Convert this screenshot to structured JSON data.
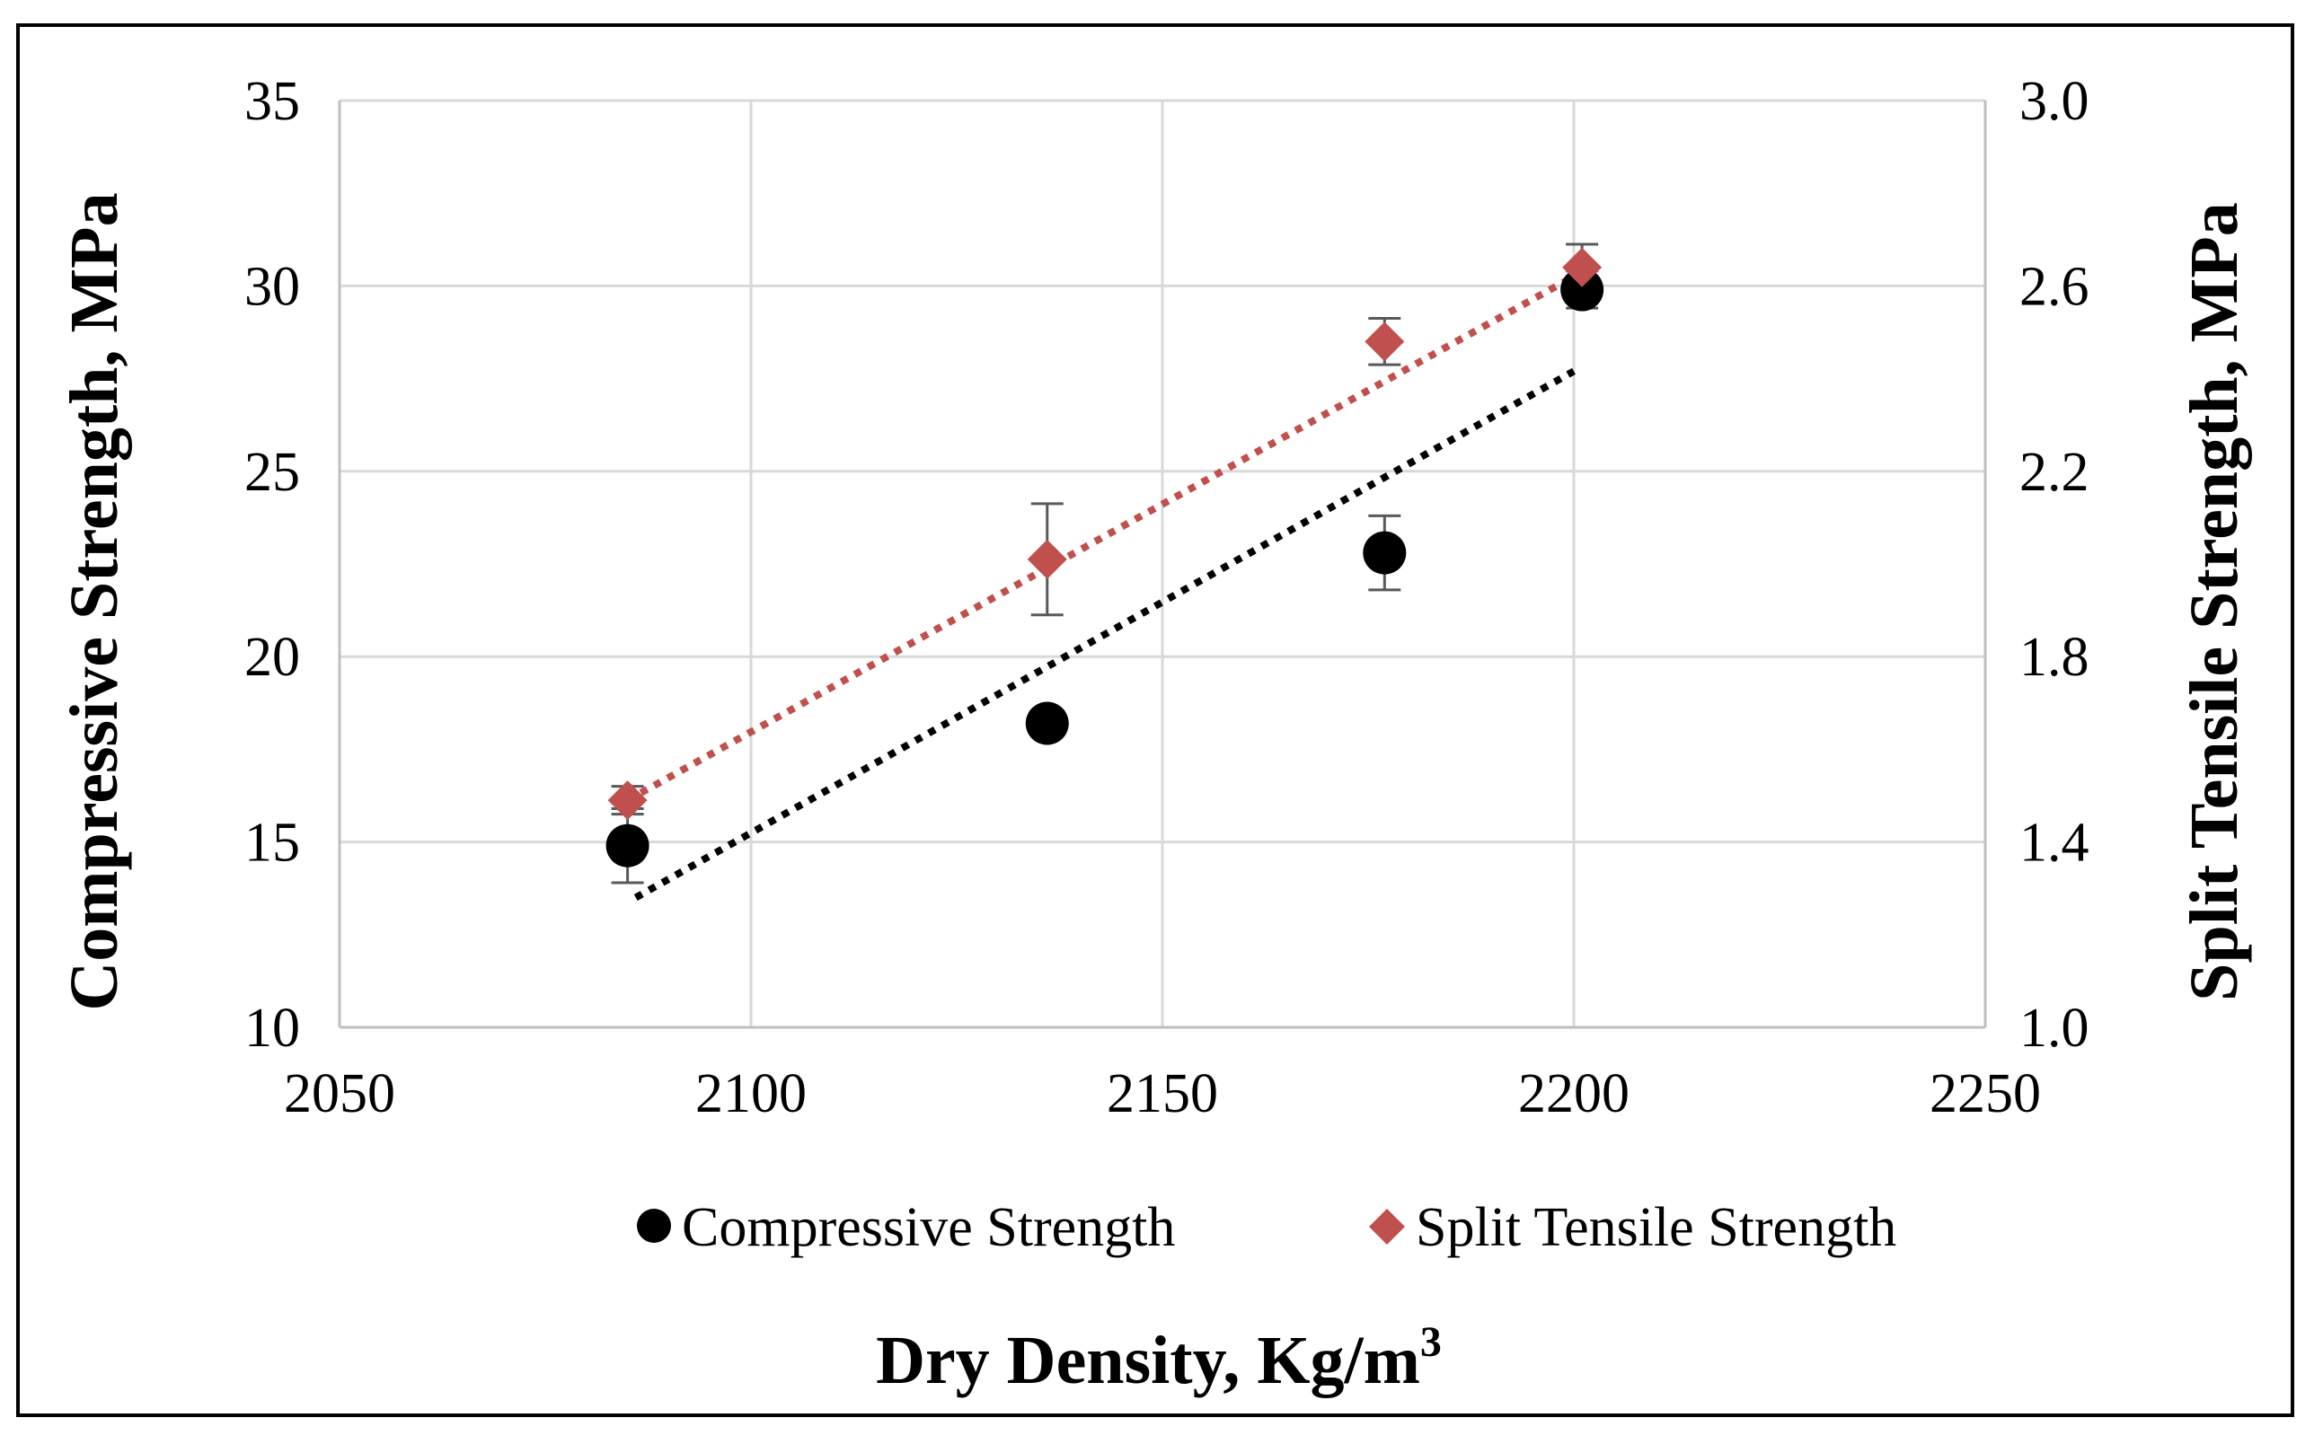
{
  "chart_data": {
    "type": "scatter",
    "title": "",
    "xlabel": "Dry Density, Kg/m",
    "xlabel_superscript": "3",
    "ylabel_left": "Compressive Strength, MPa",
    "ylabel_right": "Split Tensile Strength, MPa",
    "xlim": [
      2050,
      2250
    ],
    "ylim_left": [
      10,
      35
    ],
    "ylim_right": [
      1.0,
      3.0
    ],
    "x_ticks": [
      "2050",
      "2100",
      "2150",
      "2200",
      "2250"
    ],
    "y_left_ticks": [
      "10",
      "15",
      "20",
      "25",
      "30",
      "35"
    ],
    "y_right_ticks": [
      "1.0",
      "1.4",
      "1.8",
      "2.2",
      "2.6",
      "3.0"
    ],
    "grid": true,
    "legend_position": "bottom",
    "series": [
      {
        "name": "Compressive Strength",
        "axis": "left",
        "marker": "circle",
        "color": "#000000",
        "points": [
          {
            "x": 2085,
            "y": 14.9,
            "err": 1.0
          },
          {
            "x": 2136,
            "y": 18.2,
            "err": 0.3
          },
          {
            "x": 2177,
            "y": 22.8,
            "err": 1.0
          },
          {
            "x": 2201,
            "y": 29.9,
            "err": 0.5
          }
        ],
        "trendline": {
          "x": [
            2086,
            2200
          ],
          "y": [
            13.5,
            27.7
          ],
          "style": "dotted"
        }
      },
      {
        "name": "Split Tensile Strength",
        "axis": "right",
        "marker": "diamond",
        "color": "#c0504d",
        "points": [
          {
            "x": 2085,
            "y": 1.49,
            "err": 0.03
          },
          {
            "x": 2136,
            "y": 2.01,
            "err": 0.12
          },
          {
            "x": 2177,
            "y": 2.48,
            "err": 0.05
          },
          {
            "x": 2201,
            "y": 2.64,
            "err": 0.05
          }
        ],
        "trendline": {
          "x": [
            2085,
            2201
          ],
          "y": [
            1.49,
            2.63
          ],
          "style": "dotted"
        }
      }
    ]
  }
}
